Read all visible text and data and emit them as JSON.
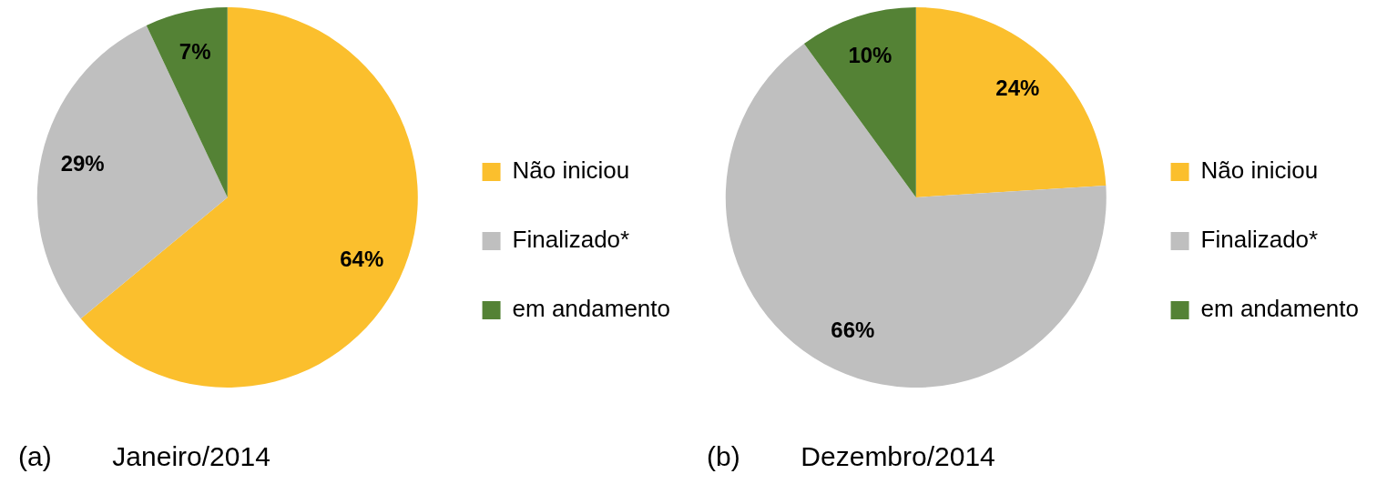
{
  "chart_data": [
    {
      "type": "pie",
      "title": "(a)        Janeiro/2014",
      "categories": [
        "Não iniciou",
        "Finalizado*",
        "em andamento"
      ],
      "values": [
        64,
        29,
        7
      ],
      "colors": [
        "#fbbf2d",
        "#bfbfbf",
        "#548235"
      ],
      "value_labels": [
        "64%",
        "29%",
        "7%"
      ],
      "legend": "right"
    },
    {
      "type": "pie",
      "title": "(b)        Dezembro/2014",
      "categories": [
        "Não iniciou",
        "Finalizado*",
        "em andamento"
      ],
      "values": [
        24,
        66,
        10
      ],
      "colors": [
        "#fbbf2d",
        "#bfbfbf",
        "#548235"
      ],
      "value_labels": [
        "24%",
        "66%",
        "10%"
      ],
      "legend": "right"
    }
  ]
}
